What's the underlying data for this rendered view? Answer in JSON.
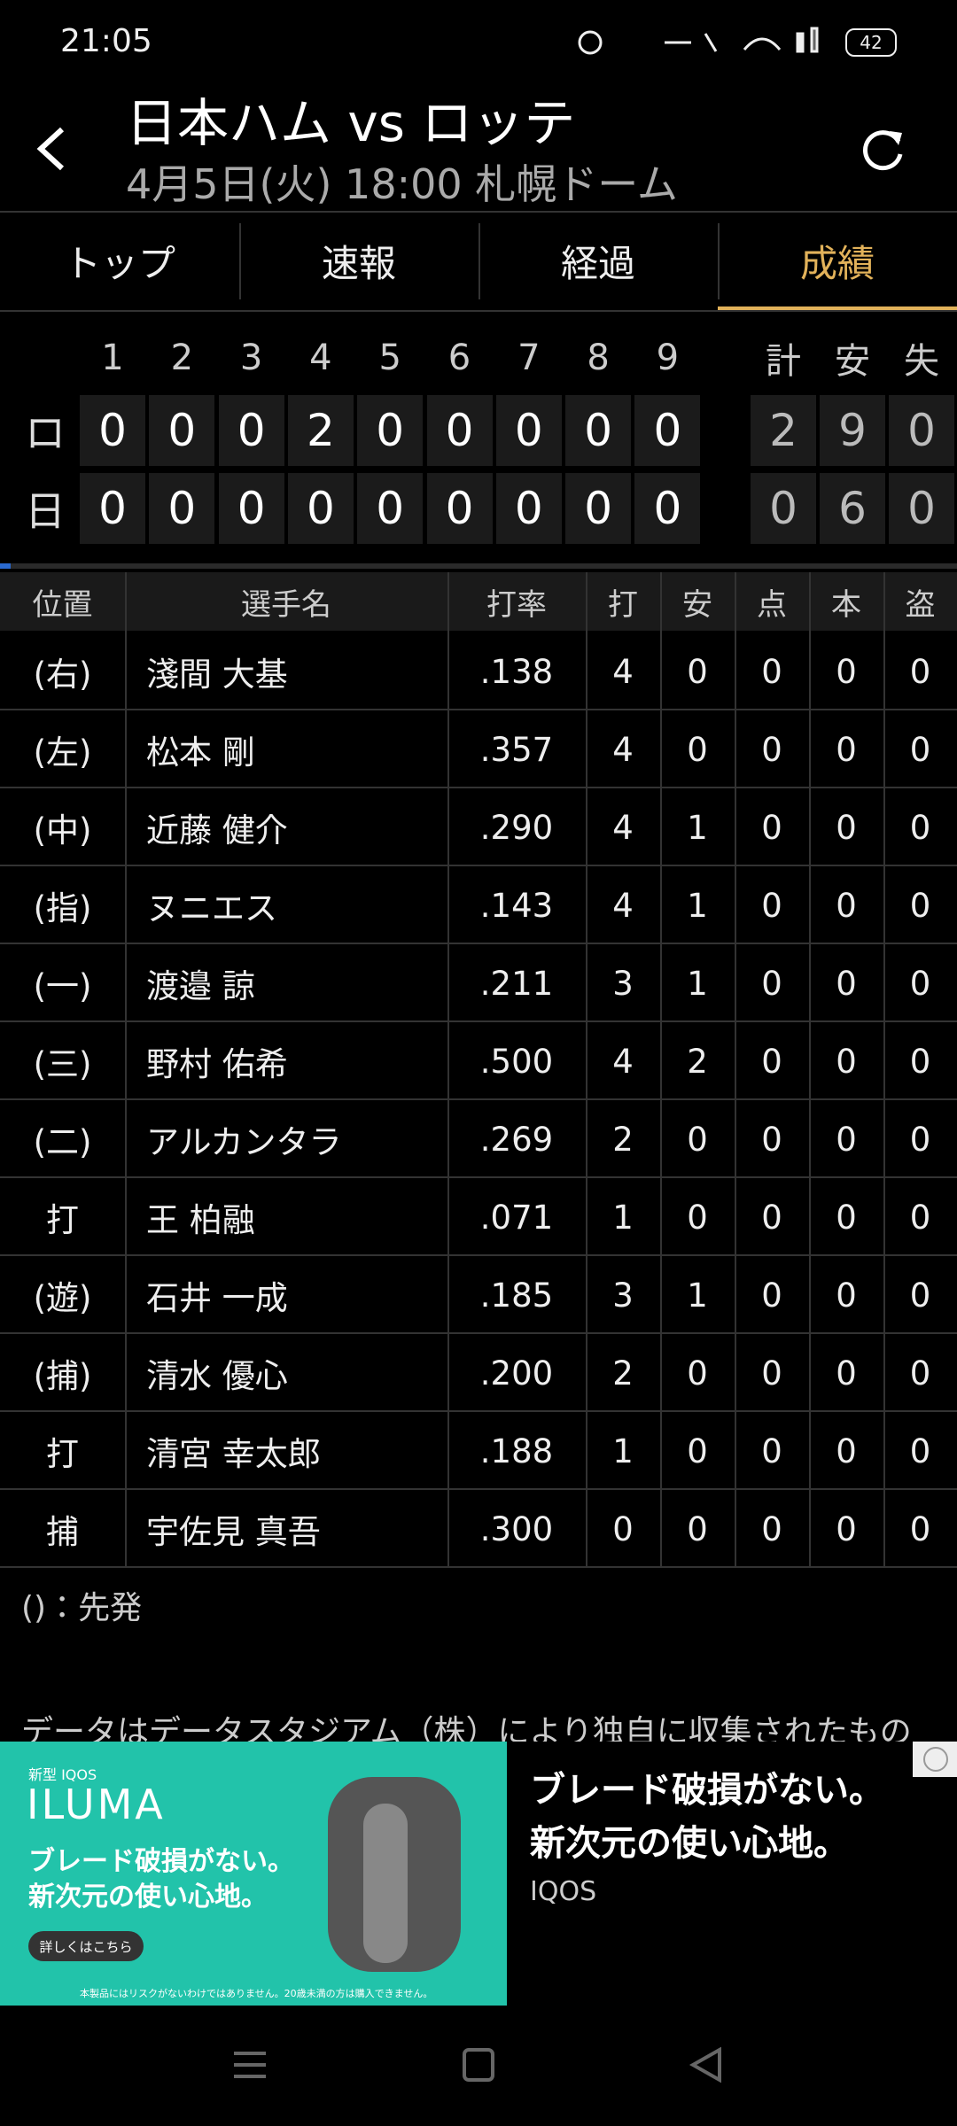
{
  "status": {
    "time": "21:05",
    "battery": "42"
  },
  "header": {
    "title": "日本ハム vs ロッテ",
    "subtitle": "4月5日(火) 18:00 札幌ドーム"
  },
  "tabs": {
    "items": [
      "トップ",
      "速報",
      "経過",
      "成績"
    ],
    "active": 3
  },
  "scoreboard": {
    "innings": [
      1,
      2,
      3,
      4,
      5,
      6,
      7,
      8,
      9
    ],
    "totals_header": [
      "計",
      "安",
      "失"
    ],
    "rows": [
      {
        "team": "ロ",
        "innings": [
          0,
          0,
          0,
          2,
          0,
          0,
          0,
          0,
          0
        ],
        "totals": [
          2,
          9,
          0
        ]
      },
      {
        "team": "日",
        "innings": [
          0,
          0,
          0,
          0,
          0,
          0,
          0,
          0,
          0
        ],
        "totals": [
          0,
          6,
          0
        ]
      }
    ]
  },
  "table": {
    "headers": [
      "位置",
      "選手名",
      "打率",
      "打",
      "安",
      "点",
      "本",
      "盗"
    ],
    "rows": [
      [
        "(右)",
        "淺間 大基",
        ".138",
        4,
        0,
        0,
        0,
        0
      ],
      [
        "(左)",
        "松本 剛",
        ".357",
        4,
        0,
        0,
        0,
        0
      ],
      [
        "(中)",
        "近藤 健介",
        ".290",
        4,
        1,
        0,
        0,
        0
      ],
      [
        "(指)",
        "ヌニエス",
        ".143",
        4,
        1,
        0,
        0,
        0
      ],
      [
        "(一)",
        "渡邉 諒",
        ".211",
        3,
        1,
        0,
        0,
        0
      ],
      [
        "(三)",
        "野村 佑希",
        ".500",
        4,
        2,
        0,
        0,
        0
      ],
      [
        "(二)",
        "アルカンタラ",
        ".269",
        2,
        0,
        0,
        0,
        0
      ],
      [
        "打",
        "王 柏融",
        ".071",
        1,
        0,
        0,
        0,
        0
      ],
      [
        "(遊)",
        "石井 一成",
        ".185",
        3,
        1,
        0,
        0,
        0
      ],
      [
        "(捕)",
        "清水 優心",
        ".200",
        2,
        0,
        0,
        0,
        0
      ],
      [
        "打",
        "清宮 幸太郎",
        ".188",
        1,
        0,
        0,
        0,
        0
      ],
      [
        "捕",
        "宇佐見 真吾",
        ".300",
        0,
        0,
        0,
        0,
        0
      ]
    ]
  },
  "note": "()：先発",
  "disclaimer": "データはデータスタジアム（株）により独自に収集されたもの",
  "ad": {
    "brand": "新型 IQOS",
    "product": "ILUMA",
    "image_lines": [
      "ブレード破損がない。",
      "新次元の使い心地。"
    ],
    "button": "詳しくはこちら",
    "fine_print": "本製品にはリスクがないわけではありません。20歳未満の方は購入できません。",
    "headline_lines": [
      "ブレード破損がない。",
      "新次元の使い心地。"
    ],
    "advertiser": "IQOS"
  }
}
